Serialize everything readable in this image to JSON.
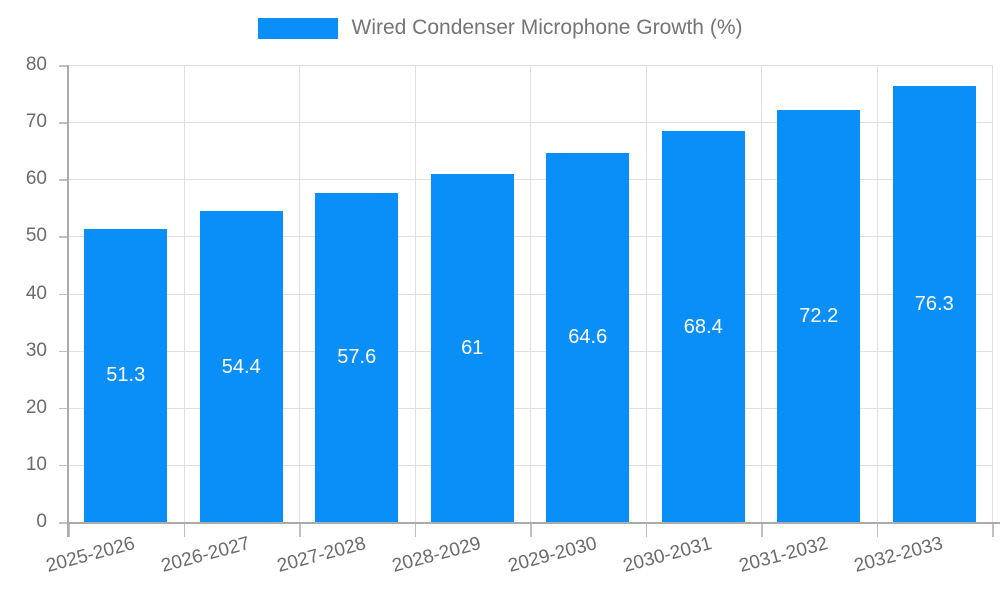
{
  "legend": {
    "label": "Wired Condenser Microphone Growth (%)"
  },
  "chart_data": {
    "type": "bar",
    "title": "Wired Condenser Microphone Growth (%)",
    "categories": [
      "2025-2026",
      "2026-2027",
      "2027-2028",
      "2028-2029",
      "2029-2030",
      "2030-2031",
      "2031-2032",
      "2032-2033"
    ],
    "values": [
      51.3,
      54.4,
      57.6,
      61,
      64.6,
      68.4,
      72.2,
      76.3
    ],
    "xlabel": "",
    "ylabel": "",
    "ylim": [
      0,
      80
    ],
    "yticks": [
      0,
      10,
      20,
      30,
      40,
      50,
      60,
      70,
      80
    ],
    "grid": true,
    "legend_position": "top-center",
    "value_labels_inside_bars": true
  },
  "colors": {
    "background": "#FFFFFF",
    "bar": "#0A8EF8",
    "grid_line": "#E0E0E0",
    "axis_line": "#ABABAB",
    "tick_mark": "#C0C0C0",
    "tick_label": "#6B6B6B",
    "legend_text": "#757575",
    "value_label": "#FFFFFF"
  }
}
